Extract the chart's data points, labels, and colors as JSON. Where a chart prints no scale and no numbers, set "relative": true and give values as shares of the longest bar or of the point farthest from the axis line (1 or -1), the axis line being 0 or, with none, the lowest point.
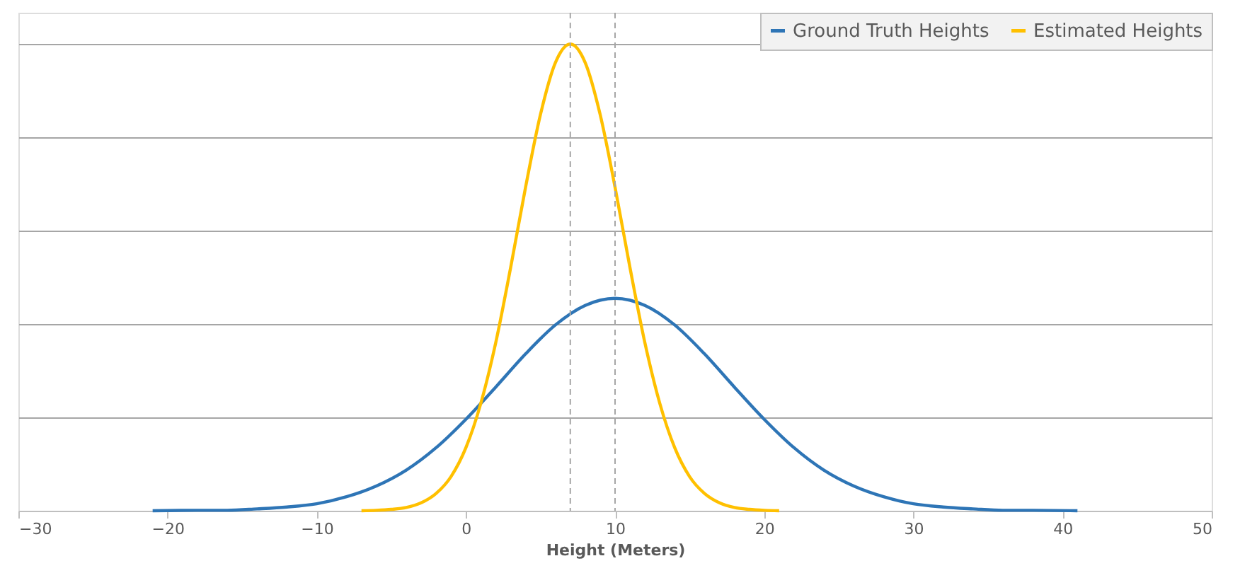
{
  "chart_data": {
    "type": "line",
    "relative": true,
    "xlabel": "Height (Meters)",
    "xlim": [
      -30,
      50
    ],
    "xticks": [
      -30,
      -20,
      -10,
      0,
      10,
      20,
      30,
      40,
      50
    ],
    "grid": "y",
    "legend": "top right",
    "marker": "none",
    "line_style": "solid",
    "series": [
      {
        "name": "Ground Truth Heights",
        "color": "#2e75b6",
        "x": [
          -21,
          -18,
          -16,
          -14,
          -12,
          -10,
          -8,
          -6,
          -4,
          -2,
          0,
          2,
          4,
          6,
          8,
          10,
          12,
          14,
          16,
          18,
          20,
          22,
          24,
          26,
          28,
          30,
          32,
          34,
          36,
          38,
          41
        ],
        "values": [
          0,
          0.001,
          0.001,
          0.004,
          0.008,
          0.015,
          0.03,
          0.053,
          0.087,
          0.135,
          0.196,
          0.265,
          0.336,
          0.398,
          0.44,
          0.455,
          0.44,
          0.398,
          0.336,
          0.265,
          0.196,
          0.135,
          0.087,
          0.053,
          0.03,
          0.015,
          0.008,
          0.004,
          0.001,
          0.001,
          0
        ]
      },
      {
        "name": "Estimated Heights",
        "color": "#ffc000",
        "x": [
          -7,
          -6,
          -5,
          -4,
          -3,
          -2,
          -1,
          0,
          1,
          2,
          3,
          4,
          5,
          6,
          7,
          8,
          9,
          10,
          11,
          12,
          13,
          14,
          15,
          16,
          17,
          18,
          19,
          20,
          21
        ],
        "values": [
          0,
          0.001,
          0.003,
          0.007,
          0.017,
          0.037,
          0.073,
          0.135,
          0.23,
          0.36,
          0.521,
          0.693,
          0.849,
          0.96,
          1,
          0.96,
          0.849,
          0.693,
          0.521,
          0.36,
          0.23,
          0.135,
          0.073,
          0.037,
          0.017,
          0.007,
          0.003,
          0.001,
          0
        ]
      }
    ],
    "ref_lines": [
      {
        "axis": "x",
        "value": 7,
        "color": "#a6a6a6",
        "line_style": "dashed"
      },
      {
        "axis": "x",
        "value": 10,
        "color": "#a6a6a6",
        "line_style": "dashed"
      }
    ]
  }
}
